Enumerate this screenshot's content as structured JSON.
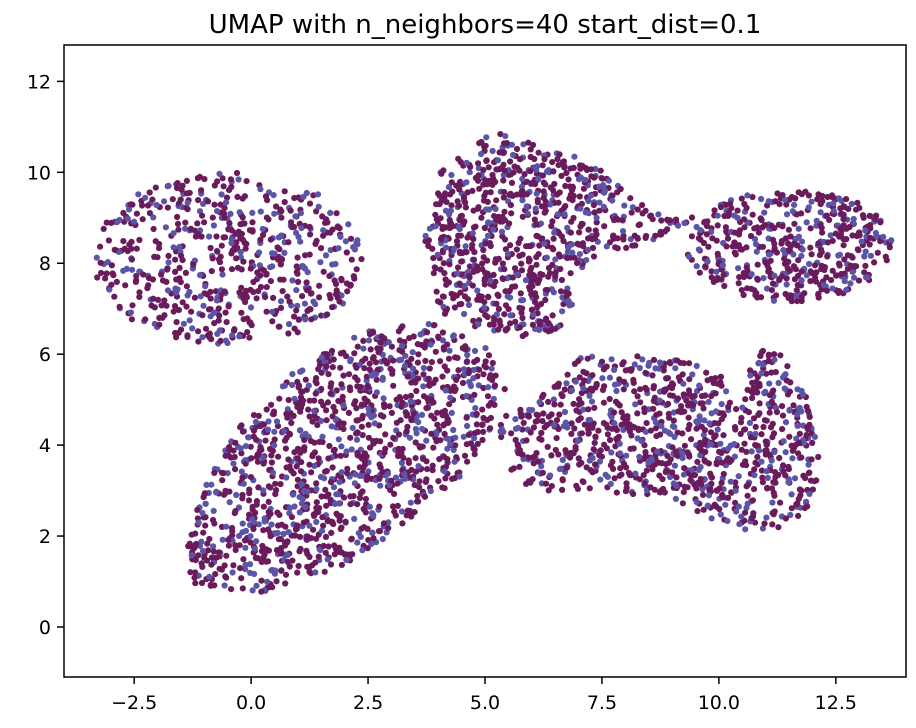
{
  "chart_data": {
    "type": "scatter",
    "title": "UMAP with n_neighbors=40 start_dist=0.1",
    "xlabel": "",
    "ylabel": "",
    "xlim": [
      -4.0,
      14.0
    ],
    "ylim": [
      -1.1,
      12.8
    ],
    "xticks": [
      -2.5,
      0.0,
      2.5,
      5.0,
      7.5,
      10.0,
      12.5
    ],
    "xtick_labels": [
      "−2.5",
      "0.0",
      "2.5",
      "5.0",
      "7.5",
      "10.0",
      "12.5"
    ],
    "yticks": [
      0,
      2,
      4,
      6,
      8,
      10,
      12
    ],
    "ytick_labels": [
      "0",
      "2",
      "4",
      "6",
      "8",
      "10",
      "12"
    ],
    "grid": false,
    "legend": "none",
    "colors": {
      "primary": "#6a1b5c",
      "secondary": "#5b55a8"
    },
    "secondary_fraction": 0.3,
    "clusters": [
      {
        "name": "upper-left",
        "shape": "ellipse",
        "center": [
          -0.5,
          8.1
        ],
        "radii": [
          2.9,
          1.9
        ],
        "count": 600
      },
      {
        "name": "upper-middle",
        "shape": "polygon",
        "count": 800,
        "vertices": [
          [
            4.0,
            10.0
          ],
          [
            5.2,
            10.9
          ],
          [
            7.2,
            10.3
          ],
          [
            8.6,
            9.1
          ],
          [
            9.5,
            9.0
          ],
          [
            8.6,
            8.5
          ],
          [
            7.1,
            8.0
          ],
          [
            6.9,
            7.0
          ],
          [
            6.3,
            6.2
          ],
          [
            5.4,
            6.5
          ],
          [
            4.6,
            6.5
          ],
          [
            4.0,
            7.0
          ],
          [
            3.7,
            8.5
          ]
        ]
      },
      {
        "name": "upper-right",
        "shape": "ellipse",
        "center": [
          11.5,
          8.4
        ],
        "radii": [
          2.2,
          1.25
        ],
        "count": 450
      },
      {
        "name": "lower-left",
        "shape": "polygon",
        "count": 1250,
        "vertices": [
          [
            -1.3,
            0.95
          ],
          [
            0.2,
            0.75
          ],
          [
            1.9,
            1.3
          ],
          [
            3.2,
            2.2
          ],
          [
            4.6,
            3.4
          ],
          [
            5.5,
            5.1
          ],
          [
            5.0,
            6.2
          ],
          [
            3.8,
            6.7
          ],
          [
            2.3,
            6.5
          ],
          [
            0.9,
            5.6
          ],
          [
            -0.2,
            4.5
          ],
          [
            -0.9,
            3.3
          ],
          [
            -1.4,
            2.0
          ]
        ]
      },
      {
        "name": "lower-right",
        "shape": "polygon",
        "count": 950,
        "vertices": [
          [
            5.4,
            3.6
          ],
          [
            6.0,
            3.0
          ],
          [
            7.4,
            3.0
          ],
          [
            9.0,
            2.8
          ],
          [
            10.0,
            2.3
          ],
          [
            11.0,
            2.0
          ],
          [
            12.0,
            2.6
          ],
          [
            12.2,
            3.5
          ],
          [
            11.9,
            5.0
          ],
          [
            11.1,
            6.4
          ],
          [
            10.4,
            5.2
          ],
          [
            9.7,
            5.8
          ],
          [
            8.0,
            6.0
          ],
          [
            7.0,
            6.0
          ],
          [
            6.4,
            5.2
          ],
          [
            5.3,
            4.6
          ]
        ]
      }
    ]
  }
}
